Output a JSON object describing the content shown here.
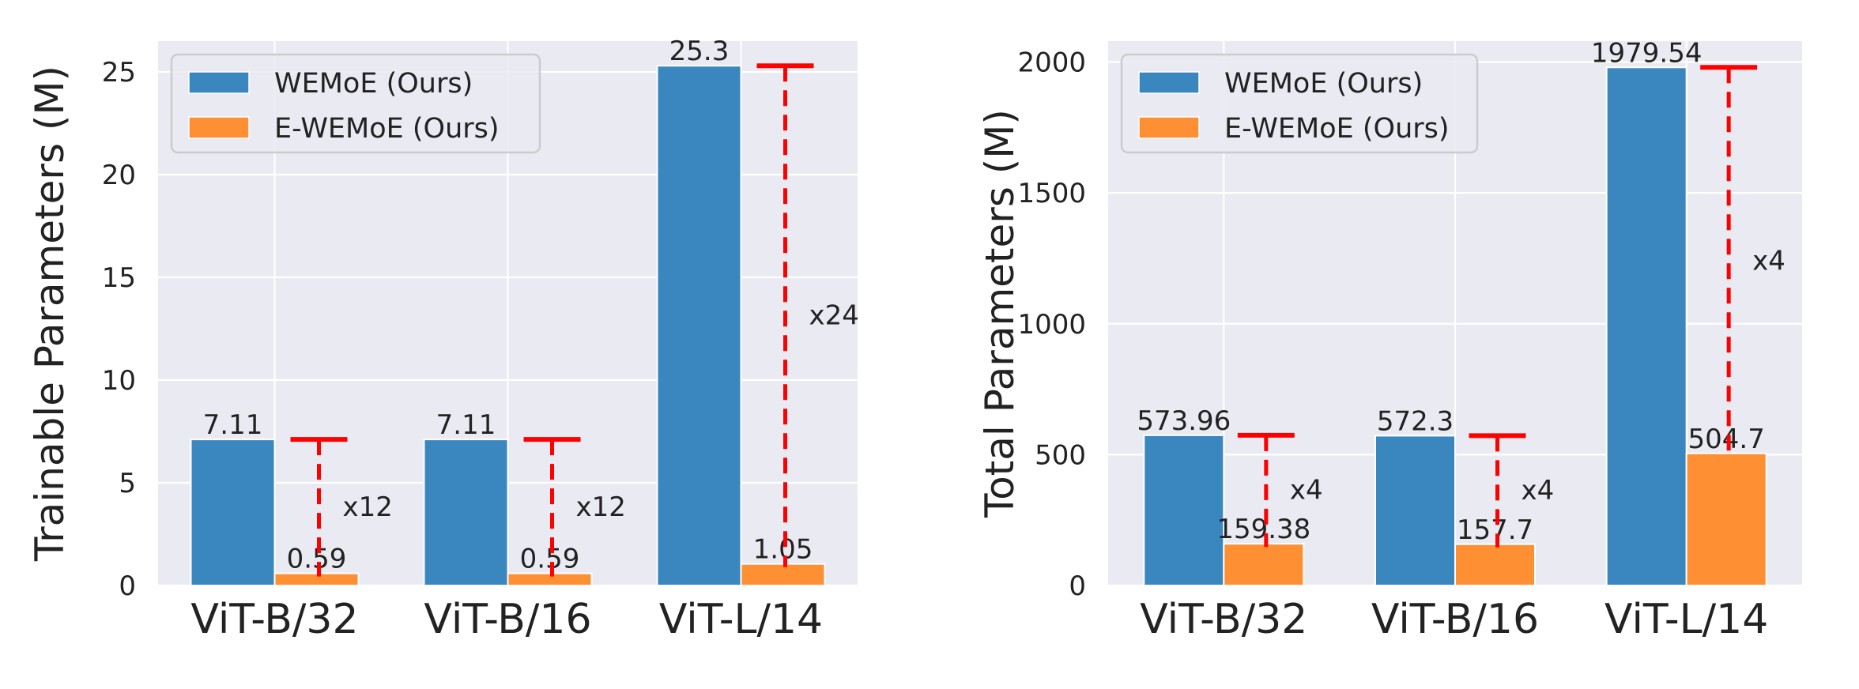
{
  "colors": {
    "background": "#EAEAF2",
    "grid": "#FFFFFF",
    "wemoe": "#3A87BF",
    "ewemoe": "#FF8F33",
    "ratio": "#FF0000",
    "text": "#222222"
  },
  "chart_data": [
    {
      "type": "bar",
      "title": "",
      "xlabel": "",
      "ylabel": "Trainable Parameters (M)",
      "categories": [
        "ViT-B/32",
        "ViT-B/16",
        "ViT-L/14"
      ],
      "ylim": [
        0,
        26.5
      ],
      "yticks": [
        0,
        5,
        10,
        15,
        20,
        25
      ],
      "grid": true,
      "legend_position": "top-left",
      "series": [
        {
          "name": "WEMoE (Ours)",
          "values": [
            7.11,
            7.11,
            25.3
          ],
          "labels": [
            "7.11",
            "7.11",
            "25.3"
          ]
        },
        {
          "name": "E-WEMoE (Ours)",
          "values": [
            0.59,
            0.59,
            1.05
          ],
          "labels": [
            "0.59",
            "0.59",
            "1.05"
          ]
        }
      ],
      "annotations": [
        "x12",
        "x12",
        "x24"
      ]
    },
    {
      "type": "bar",
      "title": "",
      "xlabel": "",
      "ylabel": "Total Parameters (M)",
      "categories": [
        "ViT-B/32",
        "ViT-B/16",
        "ViT-L/14"
      ],
      "ylim": [
        0,
        2080
      ],
      "yticks": [
        0,
        500,
        1000,
        1500,
        2000
      ],
      "grid": true,
      "legend_position": "top-left",
      "series": [
        {
          "name": "WEMoE (Ours)",
          "values": [
            573.96,
            572.3,
            1979.54
          ],
          "labels": [
            "573.96",
            "572.3",
            "1979.54"
          ]
        },
        {
          "name": "E-WEMoE (Ours)",
          "values": [
            159.38,
            157.7,
            504.7
          ],
          "labels": [
            "159.38",
            "157.7",
            "504.7"
          ]
        }
      ],
      "annotations": [
        "x4",
        "x4",
        "x4"
      ]
    }
  ]
}
